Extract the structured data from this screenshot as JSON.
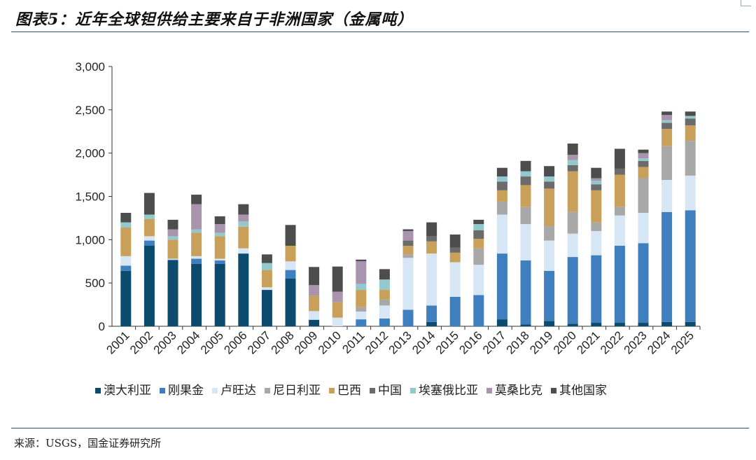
{
  "title": "图表5：近年全球钽供给主要来自于非洲国家（金属吨）",
  "source": "来源：USGS，国金证券研究所",
  "chart_data": {
    "type": "bar",
    "stacked": true,
    "title": "",
    "xlabel": "",
    "ylabel": "",
    "ylim": [
      0,
      3000
    ],
    "yticks": [
      0,
      500,
      1000,
      1500,
      2000,
      2500,
      3000
    ],
    "ytick_labels": [
      "0",
      "500",
      "1,000",
      "1,500",
      "2,000",
      "2,500",
      "3,000"
    ],
    "grid": false,
    "legend_position": "bottom",
    "categories": [
      "2001",
      "2002",
      "2003",
      "2004",
      "2005",
      "2006",
      "2007",
      "2008",
      "2009",
      "2010",
      "2011",
      "2012",
      "2013",
      "2014",
      "2015",
      "2016",
      "2017",
      "2018",
      "2019",
      "2020",
      "2021",
      "2022",
      "2023",
      "2024",
      "2025"
    ],
    "series": [
      {
        "name": "澳大利亚",
        "color": "#0c4a6e",
        "values": [
          640,
          930,
          760,
          720,
          720,
          840,
          420,
          550,
          75,
          0,
          0,
          0,
          0,
          50,
          0,
          0,
          80,
          20,
          60,
          30,
          40,
          40,
          40,
          50,
          50
        ]
      },
      {
        "name": "刚果金",
        "color": "#3f7fbf",
        "values": [
          60,
          60,
          10,
          60,
          40,
          0,
          0,
          100,
          0,
          0,
          80,
          90,
          190,
          190,
          340,
          360,
          760,
          740,
          580,
          770,
          780,
          890,
          920,
          1270,
          1290
        ]
      },
      {
        "name": "卢旺达",
        "color": "#d6e6f4",
        "values": [
          110,
          50,
          10,
          30,
          20,
          60,
          30,
          100,
          100,
          100,
          90,
          150,
          600,
          600,
          400,
          350,
          450,
          420,
          350,
          270,
          280,
          350,
          350,
          370,
          400
        ]
      },
      {
        "name": "尼日利亚",
        "color": "#a8a8a8",
        "values": [
          0,
          0,
          0,
          0,
          0,
          0,
          0,
          0,
          0,
          0,
          50,
          70,
          40,
          0,
          0,
          190,
          150,
          200,
          170,
          250,
          100,
          100,
          400,
          390,
          400
        ]
      },
      {
        "name": "巴西",
        "color": "#c8a05a",
        "values": [
          330,
          200,
          220,
          270,
          260,
          250,
          200,
          180,
          180,
          180,
          200,
          110,
          100,
          140,
          110,
          110,
          130,
          250,
          430,
          470,
          370,
          370,
          130,
          200,
          180
        ]
      },
      {
        "name": "中国",
        "color": "#6b6b6b",
        "values": [
          0,
          0,
          0,
          0,
          0,
          0,
          0,
          0,
          0,
          0,
          0,
          0,
          60,
          60,
          60,
          100,
          100,
          100,
          80,
          70,
          70,
          70,
          70,
          70,
          80
        ]
      },
      {
        "name": "埃塞俄比亚",
        "color": "#93c9cc",
        "values": [
          60,
          50,
          40,
          40,
          40,
          60,
          80,
          0,
          0,
          0,
          70,
          120,
          0,
          0,
          0,
          70,
          60,
          60,
          60,
          60,
          40,
          0,
          30,
          30,
          30
        ]
      },
      {
        "name": "莫桑比克",
        "color": "#a894ad",
        "values": [
          0,
          0,
          80,
          290,
          100,
          80,
          0,
          0,
          120,
          120,
          260,
          0,
          110,
          0,
          0,
          0,
          0,
          0,
          0,
          60,
          30,
          0,
          60,
          60,
          0
        ]
      },
      {
        "name": "其他国家",
        "color": "#4d4d4d",
        "values": [
          110,
          250,
          110,
          110,
          90,
          120,
          100,
          240,
          210,
          290,
          20,
          120,
          20,
          160,
          150,
          50,
          100,
          120,
          120,
          130,
          120,
          230,
          40,
          40,
          50
        ]
      }
    ]
  }
}
